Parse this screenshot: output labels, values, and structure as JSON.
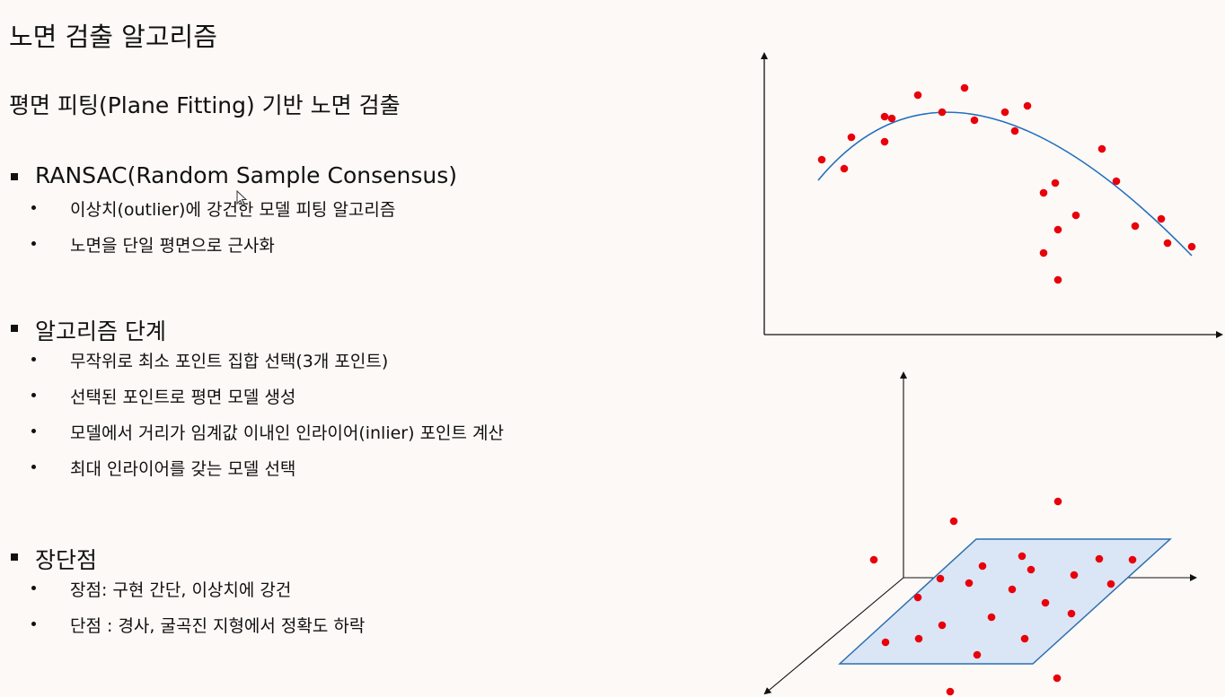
{
  "slide": {
    "title": "노면 검출 알고리즘",
    "subtitle": "평면 피팅(Plane Fitting) 기반 노면 검출",
    "sections": [
      {
        "heading": "RANSAC(Random Sample Consensus)",
        "bullets": [
          "이상치(outlier)에 강건한 모델 피팅 알고리즘",
          "노면을 단일 평면으로 근사화"
        ]
      },
      {
        "heading": "알고리즘 단계",
        "bullets": [
          "무작위로 최소 포인트 집합 선택(3개 포인트)",
          "선택된 포인트로 평면 모델 생성",
          "모델에서 거리가 임계값 이내인 인라이어(inlier) 포인트 계산",
          "최대 인라이어를 갖는 모델 선택"
        ]
      },
      {
        "heading": "장단점",
        "bullets": [
          "장점: 구현 간단, 이상치에 강건",
          "단점 : 경사, 굴곡진 지형에서 정확도 하락"
        ]
      }
    ]
  },
  "colors": {
    "background": "#fdf9f6",
    "point": "#e8000b",
    "curve": "#1f6fbf",
    "plane_fill": "#dae6f6",
    "plane_stroke": "#2b6fb0",
    "axis": "#111111"
  },
  "icons": {
    "cursor": "mouse-pointer-icon"
  }
}
